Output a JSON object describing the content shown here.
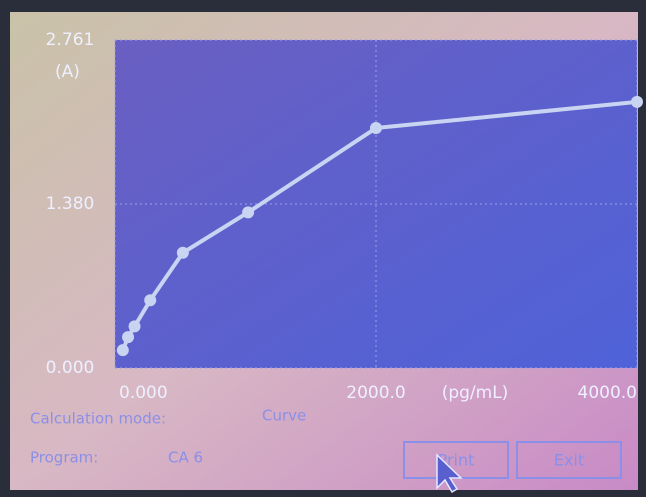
{
  "chart_data": {
    "type": "line",
    "y_unit": "(A)",
    "xlabel": "(pg/mL)",
    "x": [
      60,
      100,
      150,
      270,
      520,
      1020,
      2000,
      4000
    ],
    "series": [
      {
        "color": "#c9d3f2",
        "values": [
          0.15,
          0.26,
          0.35,
          0.57,
          0.97,
          1.31,
          2.02,
          2.24
        ]
      }
    ],
    "xlim": [
      0,
      4000
    ],
    "ylim": [
      0,
      2.761
    ],
    "xticks": [
      {
        "value": 0,
        "label": "0.000"
      },
      {
        "value": 2000,
        "label": "2000.0"
      },
      {
        "value": 4000,
        "label": "4000.0"
      }
    ],
    "yticks": [
      {
        "value": 0,
        "label": "0.000"
      },
      {
        "value": 1.38,
        "label": "1.380"
      },
      2.761
    ],
    "grid": true
  },
  "info": {
    "mode_label": "Calculation mode:",
    "mode_value": "Curve",
    "program_label": "Program:",
    "program_value": "CA 6"
  },
  "buttons": {
    "print": "Print",
    "exit": "Exit"
  }
}
